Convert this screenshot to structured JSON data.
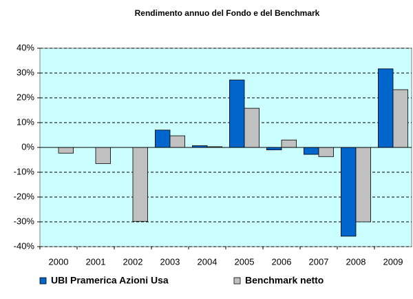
{
  "chart_data": {
    "type": "bar",
    "title": "Rendimento annuo del Fondo e del Benchmark",
    "categories": [
      "2000",
      "2001",
      "2002",
      "2003",
      "2004",
      "2005",
      "2006",
      "2007",
      "2008",
      "2009"
    ],
    "series": [
      {
        "name": "UBI Pramerica Azioni Usa",
        "color": "#0066cc",
        "values": [
          null,
          null,
          null,
          7,
          0.7,
          27.2,
          -1,
          -2.8,
          -35.8,
          31.7
        ]
      },
      {
        "name": "Benchmark netto",
        "color": "#c0c0c0",
        "values": [
          -2.3,
          -6.5,
          -29.8,
          4.7,
          0.3,
          15.8,
          3,
          -3.7,
          -30,
          23.3
        ]
      }
    ],
    "ylim": [
      -40,
      40
    ],
    "yticks": [
      {
        "value": -40,
        "label": "-40%"
      },
      {
        "value": -30,
        "label": "-30%"
      },
      {
        "value": -20,
        "label": "-20%"
      },
      {
        "value": -10,
        "label": "-10%"
      },
      {
        "value": 0,
        "label": "0%"
      },
      {
        "value": 10,
        "label": "10%"
      },
      {
        "value": 20,
        "label": "20%"
      },
      {
        "value": 30,
        "label": "30%"
      },
      {
        "value": 40,
        "label": "40%"
      }
    ],
    "grid": true
  }
}
